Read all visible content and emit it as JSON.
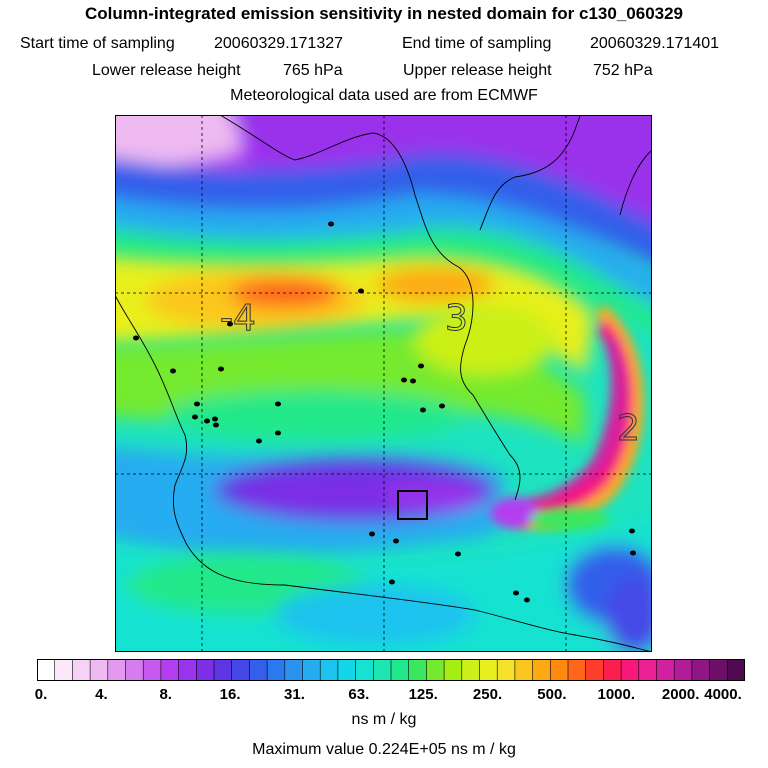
{
  "header": {
    "title": "Column-integrated emission sensitivity in nested domain for c130_060329",
    "start_label": "Start time of sampling",
    "start_value": "20060329.171327",
    "end_label": "End time of sampling",
    "end_value": "20060329.171401",
    "lower_label": "Lower release height",
    "lower_value": "765 hPa",
    "upper_label": "Upper release height",
    "upper_value": "752 hPa",
    "met_text": "Meteorological data used are from ECMWF"
  },
  "map": {
    "grid_labels": [
      "-4",
      "3",
      "2"
    ]
  },
  "colorbar": {
    "tick_labels": [
      "0.",
      "4.",
      "8.",
      "16.",
      "31.",
      "63.",
      "125.",
      "250.",
      "500.",
      "1000.",
      "2000.",
      "4000."
    ],
    "colors": [
      "#ffffff",
      "#fbe9fb",
      "#f5d2f6",
      "#eebaf1",
      "#e299ef",
      "#d77cef",
      "#c85bef",
      "#b43ef0",
      "#9a33ec",
      "#7d2fe6",
      "#5f35e2",
      "#4548e6",
      "#335fea",
      "#2b79ee",
      "#2a93f0",
      "#28acf0",
      "#1dc3ee",
      "#14d6e9",
      "#16e2d2",
      "#1de6b0",
      "#21e88a",
      "#3ae85f",
      "#74ea2e",
      "#a6ee12",
      "#ccf019",
      "#e8ef1f",
      "#f8e12a",
      "#fbc71f",
      "#fda914",
      "#fe8a10",
      "#fe661c",
      "#fd3e2b",
      "#fb1f4f",
      "#f8177b",
      "#ec2193",
      "#d221a0",
      "#b11c98",
      "#8f1684",
      "#6e0f6a",
      "#500a52"
    ],
    "unit": "ns m / kg",
    "maximum_label": "Maximum value",
    "maximum_value": "0.224E+05 ns m / kg"
  }
}
